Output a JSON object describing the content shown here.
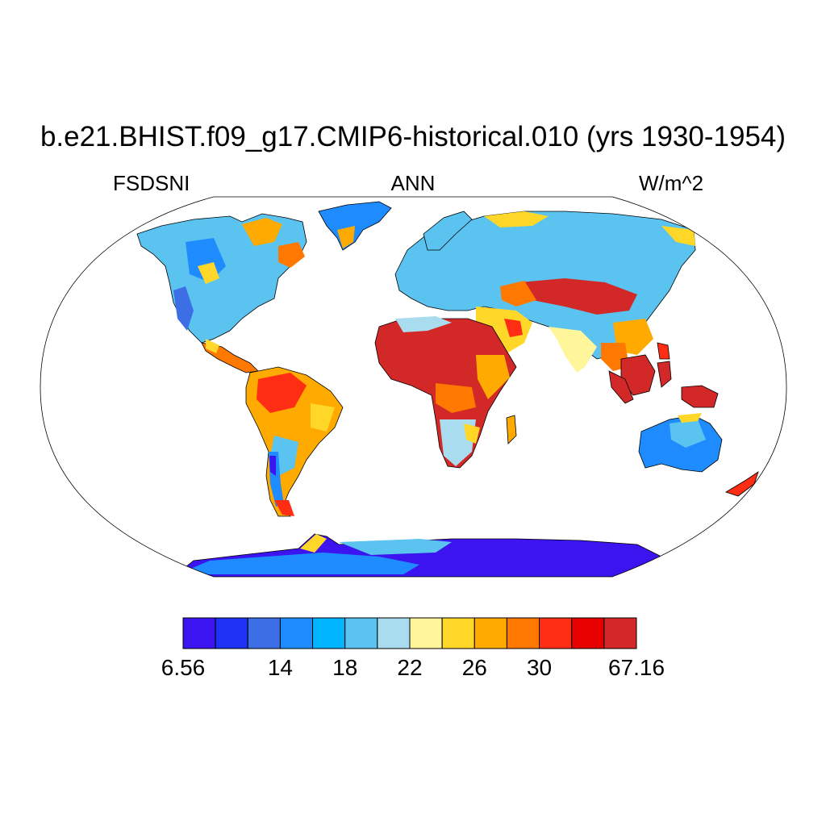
{
  "header": {
    "title": "b.e21.BHIST.f09_g17.CMIP6-historical.010 (yrs 1930-1954)",
    "left_label": "FSDSNI",
    "center_label": "ANN",
    "right_label": "W/m^2"
  },
  "colorbar": {
    "colors": [
      "#3c14f0",
      "#1e32f5",
      "#3c6ee6",
      "#1e8cff",
      "#00b4ff",
      "#5ac3f0",
      "#aadcf0",
      "#fff59b",
      "#ffd728",
      "#ffaa00",
      "#ff7800",
      "#ff2d14",
      "#e60000",
      "#d22828"
    ],
    "labels": [
      "6.56",
      "14",
      "18",
      "22",
      "26",
      "30",
      "67.16"
    ]
  },
  "map": {
    "projection": "Robinson",
    "land_regions": [
      {
        "name": "North America",
        "color": "#5ac3f0"
      },
      {
        "name": "Greenland",
        "color": "#1e8cff"
      },
      {
        "name": "Central America",
        "color": "#ff7800"
      },
      {
        "name": "South America",
        "color": "#ffaa00"
      },
      {
        "name": "Amazon",
        "color": "#ff7800"
      },
      {
        "name": "Patagonia",
        "color": "#1e8cff"
      },
      {
        "name": "Europe",
        "color": "#5ac3f0"
      },
      {
        "name": "Siberia",
        "color": "#5ac3f0"
      },
      {
        "name": "Africa",
        "color": "#d22828"
      },
      {
        "name": "Southern Africa",
        "color": "#aadcf0"
      },
      {
        "name": "Middle East",
        "color": "#ffd728"
      },
      {
        "name": "Tibet",
        "color": "#d22828"
      },
      {
        "name": "India",
        "color": "#fff59b"
      },
      {
        "name": "Southeast Asia",
        "color": "#d22828"
      },
      {
        "name": "Australia",
        "color": "#1e8cff"
      },
      {
        "name": "New Zealand",
        "color": "#ff2d14"
      },
      {
        "name": "Antarctica",
        "color": "#3c14f0"
      }
    ]
  }
}
